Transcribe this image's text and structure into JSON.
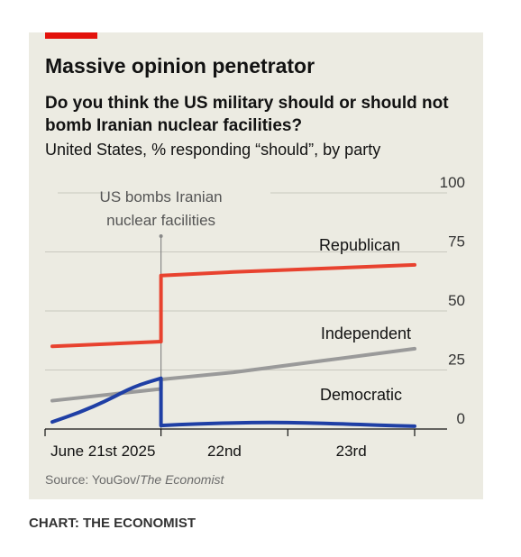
{
  "chart_data": {
    "type": "line",
    "title": "Massive opinion penetrator",
    "subtitle": "Do you think the US military should or should not bomb Iranian nuclear facilities?",
    "description": "United States, % responding “should”, by party",
    "x_tick_labels": [
      "June 21st 2025",
      "22nd",
      "23rd"
    ],
    "yticks": [
      0,
      25,
      50,
      75,
      100
    ],
    "ylim": [
      0,
      100
    ],
    "annotation": {
      "lines": [
        "US bombs Iranian",
        "nuclear facilities"
      ],
      "x": 0.6
    },
    "series": [
      {
        "name": "Republican",
        "color": "#e8422f",
        "points": [
          [
            0,
            35
          ],
          [
            0.6,
            37
          ],
          [
            0.6,
            65
          ],
          [
            1.0,
            66.5
          ],
          [
            1.5,
            68
          ],
          [
            2.0,
            69.5
          ]
        ]
      },
      {
        "name": "Independent",
        "color": "#9a9a9a",
        "points": [
          [
            0,
            12
          ],
          [
            0.6,
            17
          ],
          [
            0.6,
            21
          ],
          [
            1.0,
            24
          ],
          [
            1.5,
            29
          ],
          [
            2.0,
            34
          ]
        ]
      },
      {
        "name": "Democratic",
        "color": "#1f3fa5",
        "points": [
          [
            0,
            3
          ],
          [
            0.15,
            7
          ],
          [
            0.3,
            12
          ],
          [
            0.45,
            18
          ],
          [
            0.6,
            21.5
          ],
          [
            0.6,
            1.5
          ],
          [
            0.8,
            2.2
          ],
          [
            1.0,
            2.6
          ],
          [
            1.2,
            2.8
          ],
          [
            1.4,
            2.6
          ],
          [
            1.6,
            2.2
          ],
          [
            1.8,
            1.6
          ],
          [
            2.0,
            1.2
          ]
        ]
      }
    ],
    "source_prefix": "Source: YouGov/",
    "source_italic": "The Economist"
  },
  "credit": "CHART: THE ECONOMIST"
}
